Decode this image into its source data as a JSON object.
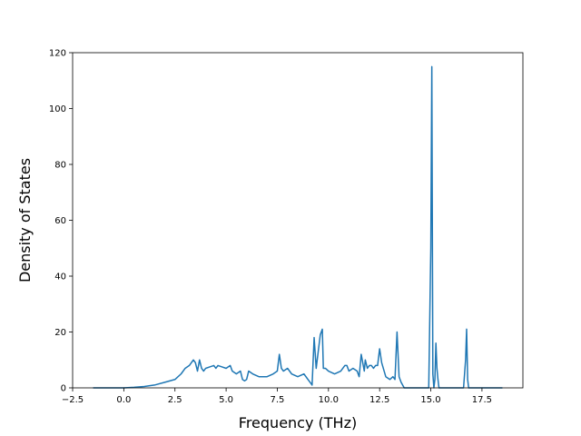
{
  "chart_data": {
    "type": "line",
    "title": "",
    "xlabel": "Frequency (THz)",
    "ylabel": "Density of States",
    "xlim": [
      -2.5,
      19.5
    ],
    "ylim": [
      0,
      120
    ],
    "x_ticks": [
      -2.5,
      0.0,
      2.5,
      5.0,
      7.5,
      10.0,
      12.5,
      15.0,
      17.5
    ],
    "x_tick_labels": [
      "−2.5",
      "0.0",
      "2.5",
      "5.0",
      "7.5",
      "10.0",
      "12.5",
      "15.0",
      "17.5"
    ],
    "y_ticks": [
      0,
      20,
      40,
      60,
      80,
      100,
      120
    ],
    "y_tick_labels": [
      "0",
      "20",
      "40",
      "60",
      "80",
      "100",
      "120"
    ],
    "grid": false,
    "legend": "none",
    "series": [
      {
        "color": "#1f77b4",
        "x": [
          -1.5,
          0.0,
          0.5,
          1.0,
          1.5,
          2.0,
          2.5,
          2.8,
          3.0,
          3.2,
          3.4,
          3.5,
          3.6,
          3.7,
          3.8,
          3.9,
          4.0,
          4.2,
          4.4,
          4.5,
          4.6,
          4.8,
          5.0,
          5.2,
          5.3,
          5.5,
          5.7,
          5.8,
          5.9,
          6.0,
          6.1,
          6.3,
          6.6,
          7.0,
          7.3,
          7.5,
          7.6,
          7.7,
          7.8,
          8.0,
          8.2,
          8.5,
          8.8,
          9.0,
          9.1,
          9.2,
          9.3,
          9.4,
          9.5,
          9.6,
          9.7,
          9.75,
          9.85,
          10.0,
          10.3,
          10.6,
          10.8,
          10.9,
          11.0,
          11.2,
          11.4,
          11.5,
          11.6,
          11.7,
          11.75,
          11.8,
          11.9,
          12.0,
          12.1,
          12.2,
          12.3,
          12.4,
          12.5,
          12.6,
          12.8,
          13.0,
          13.15,
          13.25,
          13.35,
          13.45,
          13.55,
          13.7,
          14.0,
          14.5,
          14.8,
          14.9,
          15.0,
          15.05,
          15.1,
          15.15,
          15.2,
          15.25,
          15.3,
          15.35,
          15.4,
          15.5,
          15.6,
          15.8,
          16.0,
          16.5,
          16.6,
          16.7,
          16.75,
          16.8,
          16.85,
          16.95,
          17.0,
          17.5,
          18.0,
          18.5
        ],
        "y": [
          0,
          0,
          0.2,
          0.5,
          1,
          2,
          3,
          5,
          7,
          8,
          10,
          9,
          6,
          10,
          7,
          6,
          7,
          7.5,
          8,
          7,
          8,
          7.5,
          7,
          8,
          6,
          5,
          6,
          3,
          2.5,
          3,
          6,
          5,
          4,
          4,
          5,
          6,
          12,
          7,
          6,
          7,
          5,
          4,
          5,
          3,
          2,
          1,
          18,
          7,
          13,
          19,
          21,
          7,
          7,
          6,
          5,
          6,
          8,
          8,
          6,
          7,
          6,
          4,
          12,
          8,
          6,
          10,
          7,
          8,
          8,
          7,
          8,
          8,
          14,
          9,
          4,
          3,
          4,
          3,
          20,
          4,
          2,
          0,
          0,
          0,
          0,
          0,
          50,
          115,
          5,
          0,
          3,
          16,
          7,
          3,
          0,
          0,
          0,
          0,
          0,
          0,
          0,
          10,
          21,
          3,
          0,
          0,
          0,
          0,
          0,
          0
        ]
      }
    ]
  }
}
